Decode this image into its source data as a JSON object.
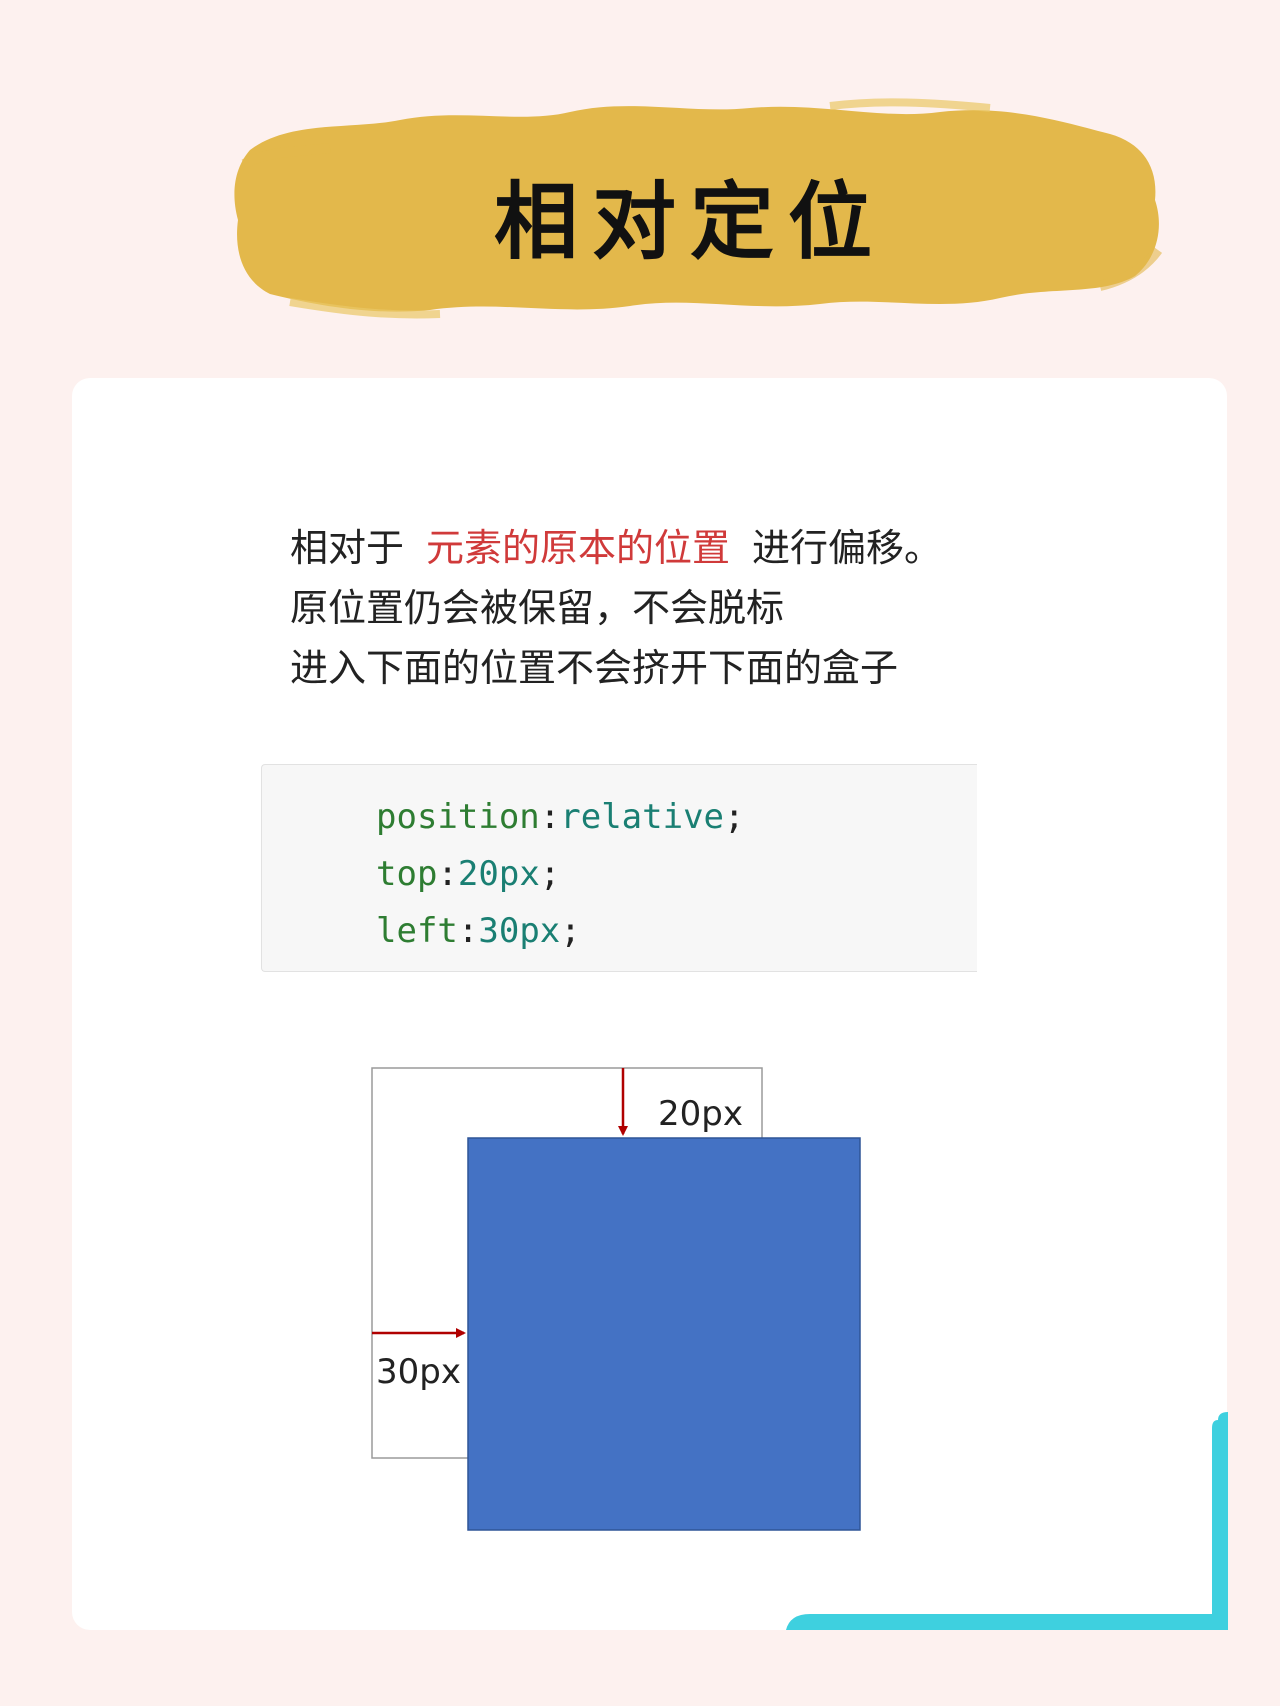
{
  "title": "相对定位",
  "intro": {
    "line1_prefix": "相对于",
    "line1_highlight": "元素的原本的位置",
    "line1_suffix": "进行偏移。",
    "line2": "原位置仍会被保留，不会脱标",
    "line3": "进入下面的位置不会挤开下面的盒子"
  },
  "code": {
    "lines": [
      {
        "prop": "position",
        "value": "relative"
      },
      {
        "prop": "top",
        "value": "20px"
      },
      {
        "prop": "left",
        "value": "30px"
      }
    ]
  },
  "diagram": {
    "top_offset_label": "20px",
    "left_offset_label": "30px",
    "box_color": "#4472c4",
    "arrow_color": "#b00000"
  },
  "colors": {
    "banner": "#e3b84b",
    "highlight": "#d03a3a",
    "accent_corner": "#3ed0df"
  }
}
